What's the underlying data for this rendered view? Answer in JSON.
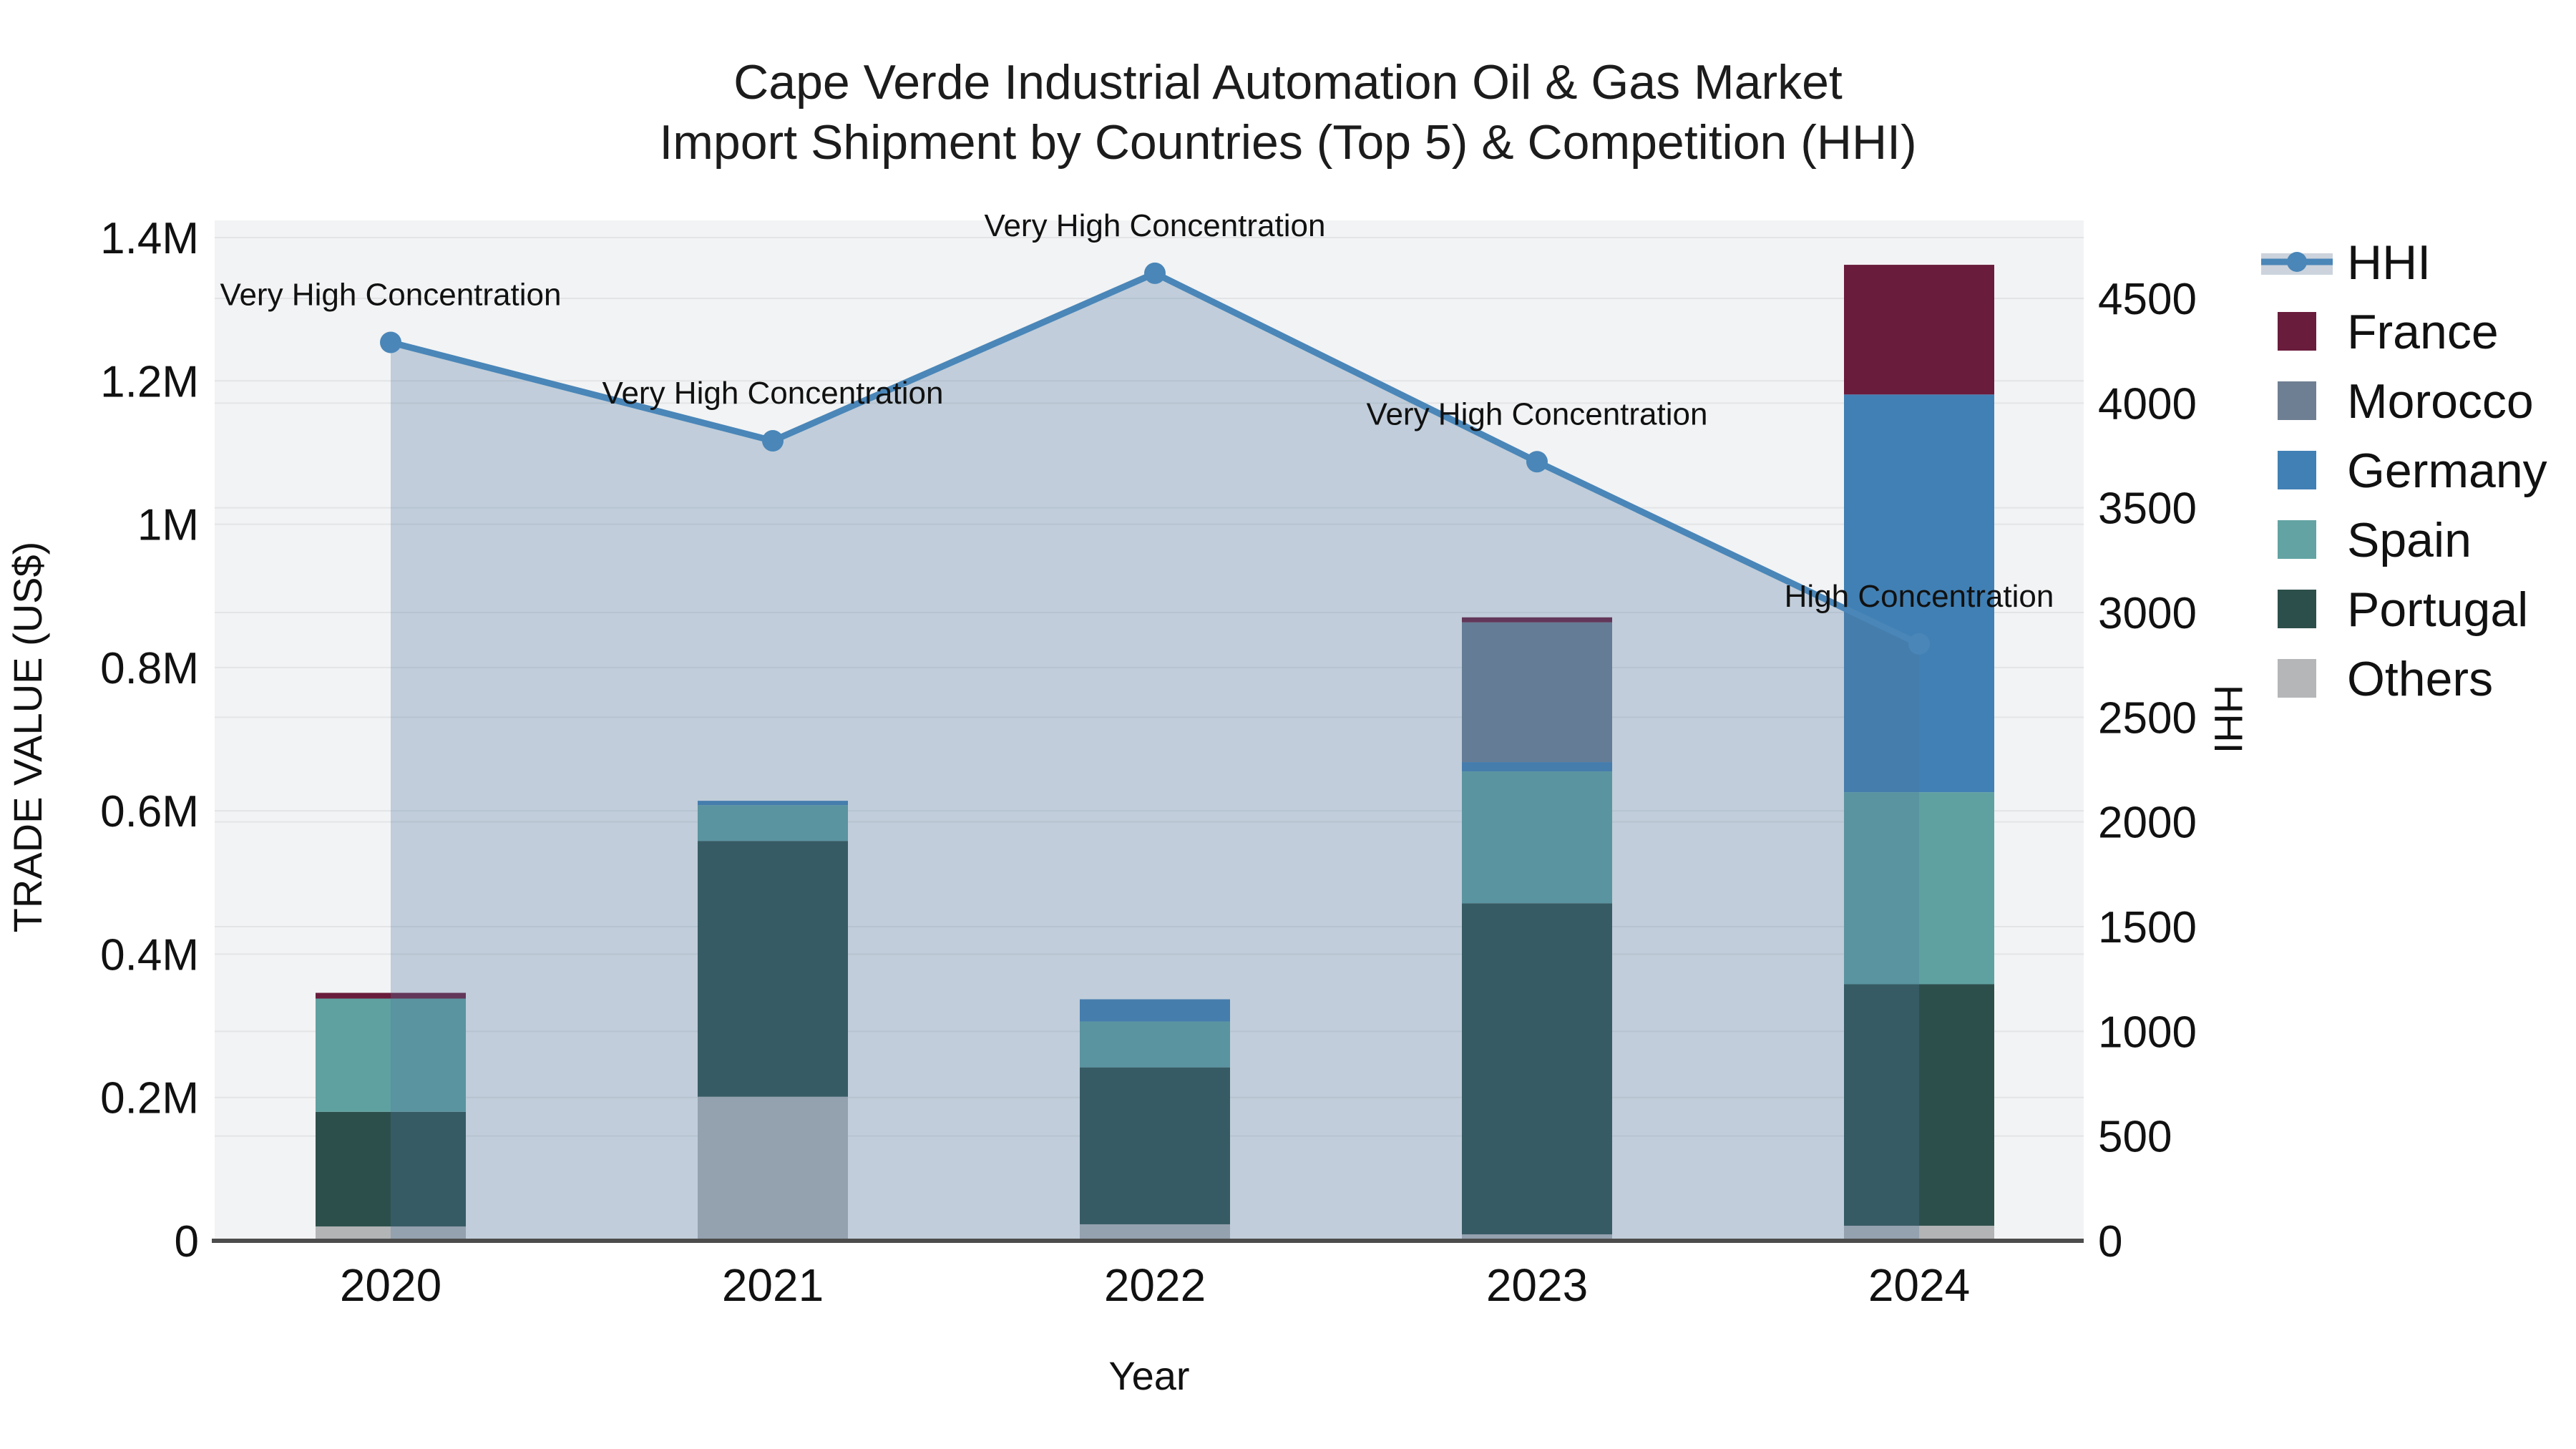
{
  "title": {
    "line1": "Cape Verde Industrial Automation Oil & Gas Market",
    "line2": "Import Shipment by Countries (Top 5) & Competition (HHI)"
  },
  "axes": {
    "left": {
      "label": "TRADE VALUE (US$)",
      "tick_labels": [
        "0",
        "0.2M",
        "0.4M",
        "0.6M",
        "0.8M",
        "1M",
        "1.2M",
        "1.4M"
      ],
      "max": 1400000
    },
    "right": {
      "label": "HHI",
      "tick_labels": [
        "0",
        "500",
        "1000",
        "1500",
        "2000",
        "2500",
        "3000",
        "3500",
        "4000",
        "4500"
      ],
      "max": 4500
    },
    "x": {
      "label": "Year"
    }
  },
  "legend": {
    "items": [
      {
        "label": "HHI",
        "type": "line",
        "color": "#4a86b8"
      },
      {
        "label": "France",
        "type": "swatch",
        "color": "#6a1c3c"
      },
      {
        "label": "Morocco",
        "type": "swatch",
        "color": "#6f7f93"
      },
      {
        "label": "Germany",
        "type": "swatch",
        "color": "#4180b4"
      },
      {
        "label": "Spain",
        "type": "swatch",
        "color": "#63a3a3"
      },
      {
        "label": "Portugal",
        "type": "swatch",
        "color": "#2d4f4b"
      },
      {
        "label": "Others",
        "type": "swatch",
        "color": "#b4b6b8"
      }
    ]
  },
  "chart_data": {
    "type": "combo: stacked bar (left axis) + line with area fill (right axis)",
    "categories": [
      "2020",
      "2021",
      "2022",
      "2023",
      "2024"
    ],
    "stack_order_bottom_to_top": [
      "Others",
      "Portugal",
      "Spain",
      "Germany",
      "Morocco",
      "France"
    ],
    "bar_series": [
      {
        "name": "France",
        "color": "#6a1c3c",
        "values": [
          8000,
          0,
          0,
          7000,
          181000
        ]
      },
      {
        "name": "Morocco",
        "color": "#6f7f93",
        "values": [
          0,
          0,
          0,
          195000,
          0
        ]
      },
      {
        "name": "Germany",
        "color": "#4180b4",
        "values": [
          0,
          6000,
          31000,
          13000,
          555000
        ]
      },
      {
        "name": "Spain",
        "color": "#5fa1a1",
        "values": [
          158000,
          50000,
          64000,
          184000,
          268000
        ]
      },
      {
        "name": "Portugal",
        "color": "#2d4f4b",
        "values": [
          160000,
          357000,
          219000,
          462000,
          337000
        ]
      },
      {
        "name": "Others",
        "color": "#b2b4b6",
        "values": [
          20000,
          201000,
          23000,
          9000,
          21000
        ]
      }
    ],
    "line_series": {
      "name": "HHI",
      "color": "#4a86b8",
      "fill_color": "rgba(80,120,160,0.30)",
      "values": [
        4290,
        3820,
        4620,
        3720,
        2850
      ],
      "annotations": [
        "Very High Concentration",
        "Very High Concentration",
        "Very High Concentration",
        "Very High Concentration",
        "High Concentration"
      ]
    },
    "ylim_left": [
      0,
      1400000
    ],
    "ylim_right": [
      0,
      4500
    ],
    "grid": true,
    "legend_position": "right",
    "plot_bg": "#f2f3f4",
    "grid_color": "#e3e4e6",
    "axis_line_color": "#4c4c4c"
  }
}
